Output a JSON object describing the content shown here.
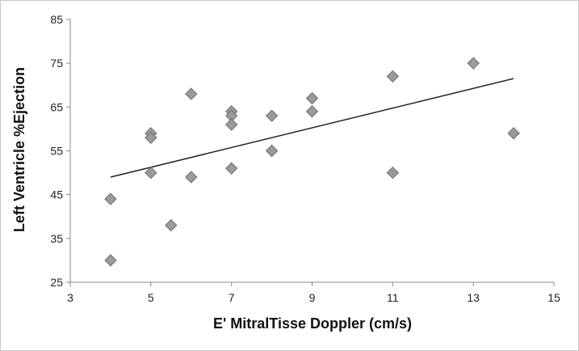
{
  "chart_data": {
    "type": "scatter",
    "title": "",
    "xlabel": "E' MitralTisse Doppler (cm/s)",
    "ylabel": "Left Ventricle %Ejection",
    "xlim": [
      3,
      15
    ],
    "ylim": [
      25,
      85
    ],
    "x_ticks": [
      "3",
      "5",
      "7",
      "9",
      "11",
      "13",
      "15"
    ],
    "y_ticks": [
      "25",
      "35",
      "45",
      "55",
      "65",
      "75",
      "85"
    ],
    "grid": false,
    "legend": "none",
    "marker": "diamond",
    "marker_color": "#9a9a9a",
    "points": [
      {
        "x": 4,
        "y": 44
      },
      {
        "x": 4,
        "y": 30
      },
      {
        "x": 5,
        "y": 59
      },
      {
        "x": 5,
        "y": 58
      },
      {
        "x": 5,
        "y": 50
      },
      {
        "x": 5.5,
        "y": 38
      },
      {
        "x": 6,
        "y": 68
      },
      {
        "x": 6,
        "y": 49
      },
      {
        "x": 7,
        "y": 64
      },
      {
        "x": 7,
        "y": 63
      },
      {
        "x": 7,
        "y": 61
      },
      {
        "x": 7,
        "y": 51
      },
      {
        "x": 8,
        "y": 63
      },
      {
        "x": 8,
        "y": 55
      },
      {
        "x": 9,
        "y": 67
      },
      {
        "x": 9,
        "y": 64
      },
      {
        "x": 11,
        "y": 72
      },
      {
        "x": 11,
        "y": 50
      },
      {
        "x": 13,
        "y": 75
      },
      {
        "x": 14,
        "y": 59
      }
    ],
    "trendline": {
      "x": [
        4,
        14
      ],
      "y": [
        49,
        71.5
      ]
    }
  }
}
